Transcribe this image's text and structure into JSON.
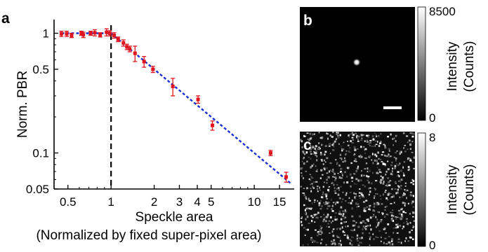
{
  "colors": {
    "data_marker": "#e0141e",
    "fit_line": "#1a2fd6",
    "threshold_line": "#000000",
    "axes": "#000000",
    "background": "#ffffff"
  },
  "panels": {
    "a": {
      "label": "a"
    },
    "b": {
      "label": "b",
      "colorbar": {
        "max_label": "8500",
        "min_label": "0",
        "label_line1": "Intensity",
        "label_line2": "(Counts)"
      },
      "has_scale_bar": true
    },
    "c": {
      "label": "c",
      "colorbar": {
        "max_label": "8",
        "min_label": "0",
        "label_line1": "Intensity",
        "label_line2": "(Counts)"
      }
    }
  },
  "chart_data": {
    "type": "scatter",
    "title": "",
    "xlabel": "Speckle area",
    "xlabel_line2": "(Normalized by fixed super-pixel area)",
    "ylabel": "Norm. PBR",
    "xscale": "log",
    "yscale": "log",
    "xlim": [
      0.4,
      19
    ],
    "ylim": [
      0.05,
      1.3
    ],
    "xticks": [
      0.5,
      1,
      2,
      3,
      4,
      5,
      10,
      15
    ],
    "xtick_labels": [
      "0.5",
      "1",
      "2",
      "3",
      "4",
      "5",
      "10",
      "15"
    ],
    "yticks": [
      0.05,
      0.1,
      0.5,
      1
    ],
    "ytick_labels": [
      "0.05",
      "0.1",
      "0.5",
      "1"
    ],
    "grid": false,
    "series": [
      {
        "kind": "errorbar",
        "x": [
          0.45,
          0.49,
          0.53,
          0.62,
          0.64,
          0.72,
          0.77,
          0.84,
          0.93,
          0.98,
          1.05,
          1.12,
          1.22,
          1.29,
          1.35,
          1.47,
          1.7,
          1.96,
          2.7,
          4.05,
          5.1,
          13.0,
          16.7
        ],
        "y": [
          0.99,
          0.99,
          0.96,
          1.0,
          0.97,
          1.0,
          1.01,
          0.97,
          1.02,
          1.0,
          0.96,
          0.89,
          0.83,
          0.77,
          0.74,
          0.68,
          0.58,
          0.5,
          0.36,
          0.28,
          0.17,
          0.1,
          0.063
        ],
        "yerr": [
          0.05,
          0.05,
          0.04,
          0.04,
          0.05,
          0.04,
          0.06,
          0.04,
          0.07,
          0.05,
          0.05,
          0.04,
          0.05,
          0.04,
          0.04,
          0.1,
          0.06,
          0.03,
          0.06,
          0.02,
          0.015,
          0.005,
          0.006
        ]
      },
      {
        "kind": "fit",
        "segments": [
          {
            "x": [
              0.45,
              1.0
            ],
            "y": [
              1.0,
              1.0
            ]
          },
          {
            "x": [
              1.0,
              18.0
            ],
            "y": [
              1.0,
              0.0556
            ]
          }
        ]
      },
      {
        "kind": "threshold",
        "x": 1.0
      }
    ]
  }
}
